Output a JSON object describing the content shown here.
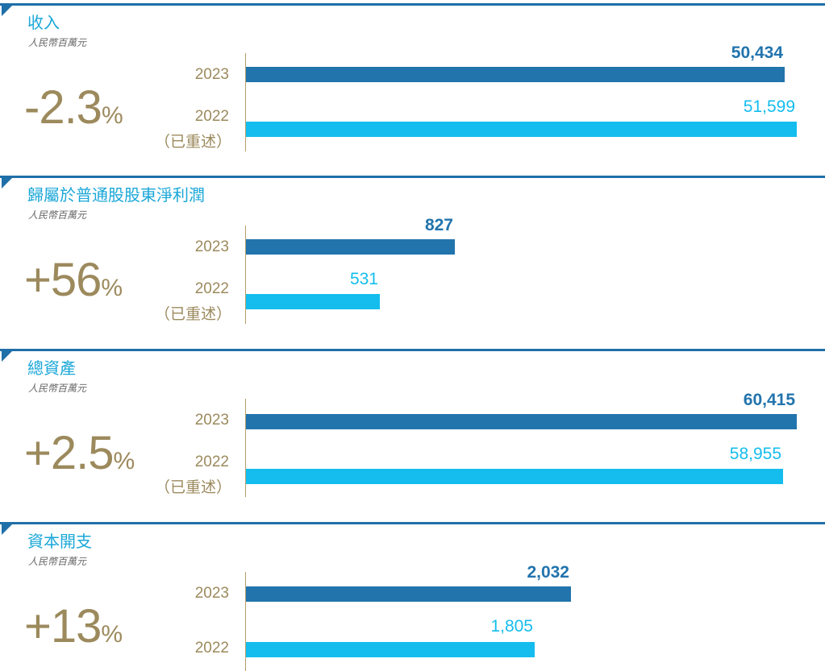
{
  "colors": {
    "rule": "#1f6fa8",
    "title": "#1aa7d8",
    "current_bar": "#2274ad",
    "previous_bar": "#14bdee",
    "accent": "#9c8a5d"
  },
  "chart_data": [
    {
      "type": "bar",
      "title": "收入",
      "subtitle": "人民幣百萬元",
      "change": "-2.3",
      "change_unit": "%",
      "categories": [
        "2023",
        "2022"
      ],
      "category_notes": [
        "",
        "（已重述）"
      ],
      "values": [
        50434,
        51599
      ],
      "value_labels": [
        "50,434",
        "51,599"
      ],
      "xlim": [
        0,
        51599
      ]
    },
    {
      "type": "bar",
      "title": "歸屬於普通股股東淨利潤",
      "subtitle": "人民幣百萬元",
      "change": "+56",
      "change_unit": "%",
      "categories": [
        "2023",
        "2022"
      ],
      "category_notes": [
        "",
        "（已重述）"
      ],
      "values": [
        827,
        531
      ],
      "value_labels": [
        "827",
        "531"
      ],
      "xlim": [
        0,
        2180
      ]
    },
    {
      "type": "bar",
      "title": "總資產",
      "subtitle": "人民幣百萬元",
      "change": "+2.5",
      "change_unit": "%",
      "categories": [
        "2023",
        "2022"
      ],
      "category_notes": [
        "",
        "（已重述）"
      ],
      "values": [
        60415,
        58955
      ],
      "value_labels": [
        "60,415",
        "58,955"
      ],
      "xlim": [
        0,
        60415
      ]
    },
    {
      "type": "bar",
      "title": "資本開支",
      "subtitle": "人民幣百萬元",
      "change": "+13",
      "change_unit": "%",
      "categories": [
        "2023",
        "2022"
      ],
      "category_notes": [
        "",
        ""
      ],
      "values": [
        2032,
        1805
      ],
      "value_labels": [
        "2,032",
        "1,805"
      ],
      "xlim": [
        0,
        3441
      ]
    }
  ]
}
